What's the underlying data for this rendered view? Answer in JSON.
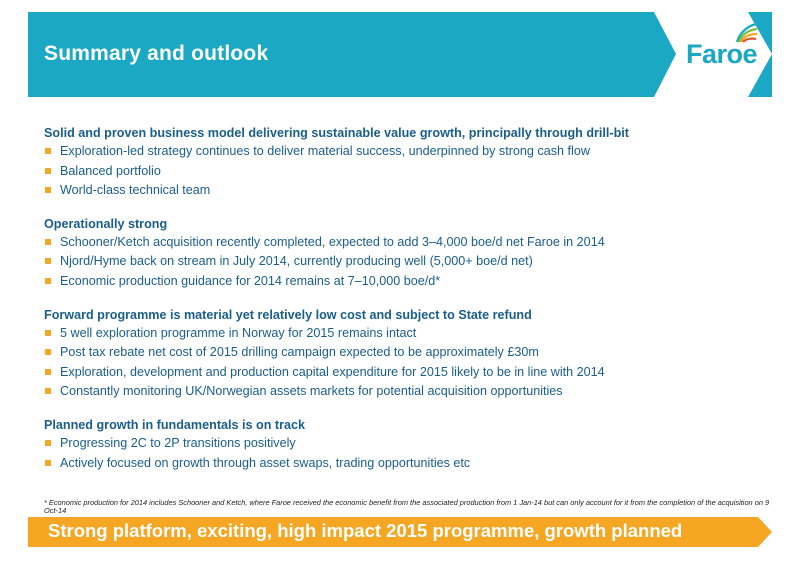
{
  "header": {
    "title": "Summary and outlook",
    "logo_text": "Faroe",
    "bg_color": "#1aa8c4"
  },
  "sections": [
    {
      "heading": "Solid and proven business model delivering sustainable value growth, principally through drill-bit",
      "bullets": [
        "Exploration-led strategy continues to deliver material success, underpinned by strong cash flow",
        "Balanced portfolio",
        "World-class technical team"
      ]
    },
    {
      "heading": "Operationally strong",
      "bullets": [
        "Schooner/Ketch acquisition recently completed, expected to add 3–4,000 boe/d net Faroe in 2014",
        "Njord/Hyme back on stream in July 2014, currently producing well (5,000+ boe/d net)",
        "Economic production guidance for 2014 remains at 7–10,000 boe/d*"
      ]
    },
    {
      "heading": "Forward programme is material yet relatively low cost and subject to State refund",
      "bullets": [
        "5 well exploration programme in Norway for 2015 remains intact",
        "Post tax rebate net cost of 2015 drilling campaign expected to be approximately £30m",
        "Exploration, development and production capital expenditure for 2015 likely to be in line with 2014",
        "Constantly monitoring UK/Norwegian assets markets for potential acquisition opportunities"
      ]
    },
    {
      "heading": "Planned growth in fundamentals is on track",
      "bullets": [
        "Progressing 2C to 2P transitions positively",
        "Actively focused on growth through asset swaps, trading opportunities etc"
      ]
    }
  ],
  "footnote": "* Economic production for 2014 includes Schooner and Ketch, where Faroe received the economic benefit from the associated production from 1 Jan-14 but can only account for it from the completion of the acquisition on 9 Oct-14",
  "banner": {
    "text": "Strong platform, exciting, high impact 2015 programme, growth planned",
    "bg_color": "#f5a623"
  },
  "colors": {
    "text": "#1a5e8a",
    "bullet": "#f5a623",
    "logo_swirl": [
      "#1aa8c4",
      "#7ac142",
      "#f5a623",
      "#e8542a"
    ]
  }
}
